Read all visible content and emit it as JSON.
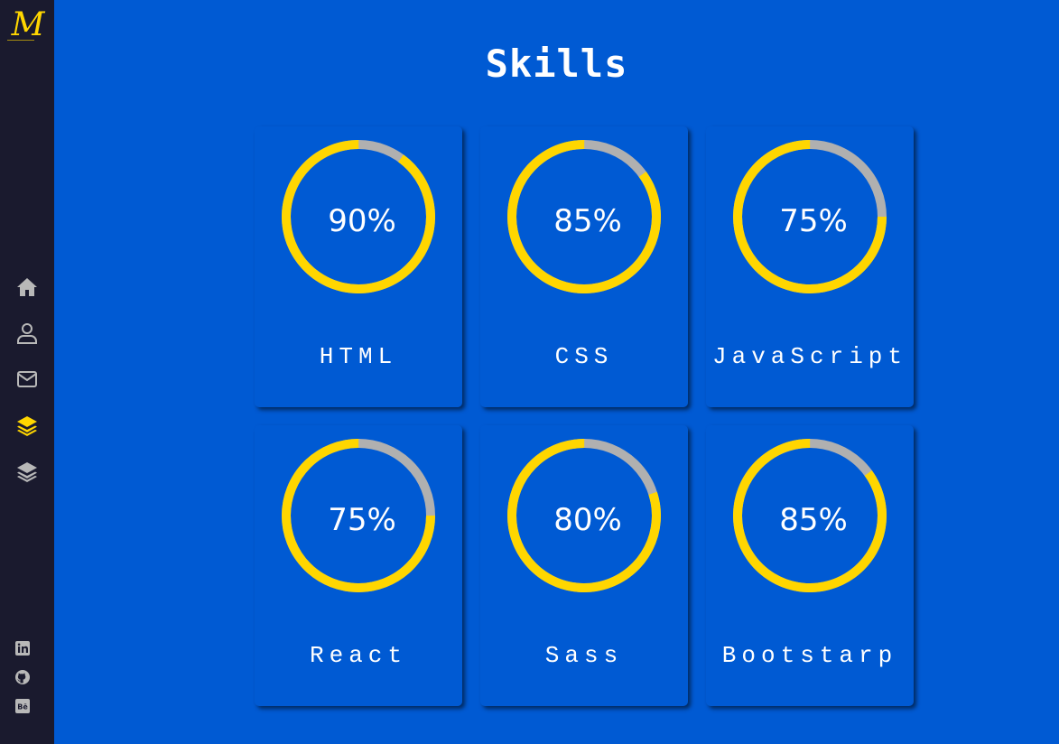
{
  "brand": {
    "logo_text": "M",
    "accent_color": "#ffd600",
    "background_color": "#005ad3",
    "sidebar_color": "#1a1a2e"
  },
  "nav": [
    {
      "icon": "home-icon",
      "active": false
    },
    {
      "icon": "user-icon",
      "active": false
    },
    {
      "icon": "envelope-icon",
      "active": false
    },
    {
      "icon": "layers-icon",
      "active": true
    },
    {
      "icon": "layers-icon",
      "active": false
    }
  ],
  "social": [
    {
      "icon": "linkedin-icon"
    },
    {
      "icon": "github-icon"
    },
    {
      "icon": "behance-icon"
    }
  ],
  "page": {
    "title": "Skills"
  },
  "skills": [
    {
      "name": "HTML",
      "percent_label": "90%",
      "percent": 90
    },
    {
      "name": "CSS",
      "percent_label": "85%",
      "percent": 85
    },
    {
      "name": "JavaScript",
      "percent_label": "75%",
      "percent": 75
    },
    {
      "name": "React",
      "percent_label": "75%",
      "percent": 75
    },
    {
      "name": "Sass",
      "percent_label": "80%",
      "percent": 80
    },
    {
      "name": "Bootstarp",
      "percent_label": "85%",
      "percent": 85
    }
  ],
  "ring_colors": {
    "progress": "#ffd600",
    "track": "#b0b0b0"
  }
}
